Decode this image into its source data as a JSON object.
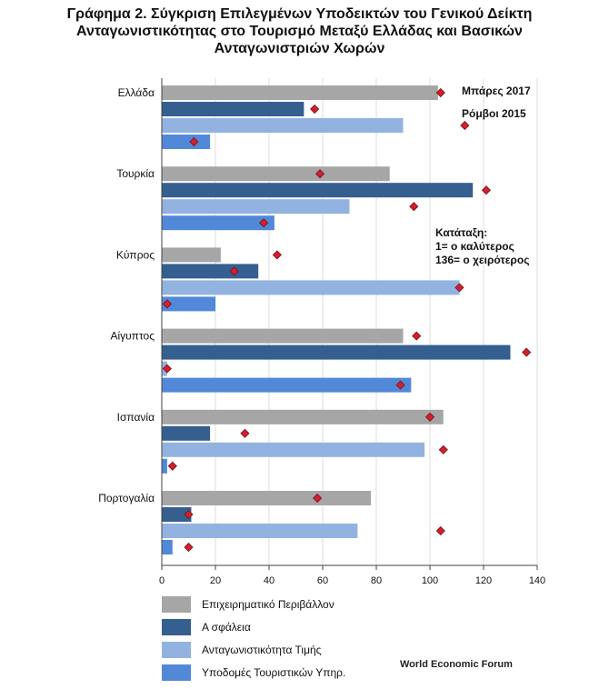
{
  "title_lines": [
    "Γράφημα 2. Σύγκριση Επιλεγμένων Υποδεικτών του Γενικού Δείκτη",
    "Ανταγωνιστικότητας στο Τουρισμό Μεταξύ Ελλάδας και Βασικών",
    "Ανταγωνιστριών Χωρών"
  ],
  "annotations": {
    "bars_label": "Μπάρες 2017",
    "diamonds_label": "Ρόμβοι 2015",
    "ranking_lines": [
      "Κατάταξη:",
      "1= ο καλύτερος",
      "136= ο χειρότερος"
    ]
  },
  "source": "World Economic Forum",
  "colors": {
    "grid": "#dcdcdc",
    "axis": "#444444",
    "diamond_fill": "#d0202e",
    "diamond_stroke": "#7a0f18"
  },
  "chart_data": {
    "type": "bar",
    "orientation": "horizontal",
    "categories": [
      "Ελλάδα",
      "Τουρκία",
      "Κύπρος",
      "Αίγυπτος",
      "Ισπανία",
      "Πορτογαλία"
    ],
    "series": [
      {
        "name": "Επιχειρηματικό Περιβάλλον",
        "color": "#a6a6a6",
        "values_2017": [
          103,
          85,
          22,
          90,
          105,
          78
        ],
        "values_2015": [
          104,
          59,
          43,
          95,
          100,
          58
        ]
      },
      {
        "name": "Α σφάλεια",
        "color": "#355f8f",
        "values_2017": [
          53,
          116,
          36,
          130,
          18,
          11
        ],
        "values_2015": [
          57,
          121,
          27,
          136,
          31,
          10
        ]
      },
      {
        "name": "Ανταγωνιστικότητα  Τιμής",
        "color": "#92b3e0",
        "values_2017": [
          90,
          70,
          111,
          2,
          98,
          73
        ],
        "values_2015": [
          113,
          94,
          111,
          2,
          105,
          104
        ]
      },
      {
        "name": "Υποδομές Τουριστικών Υπηρ.",
        "color": "#5189d8",
        "values_2017": [
          18,
          42,
          20,
          93,
          2,
          4
        ],
        "values_2015": [
          12,
          38,
          2,
          89,
          4,
          10
        ]
      }
    ],
    "xlim": [
      0,
      140
    ],
    "xticks": [
      0,
      20,
      40,
      60,
      80,
      100,
      120,
      140
    ],
    "grid": true,
    "legend_position": "bottom"
  }
}
